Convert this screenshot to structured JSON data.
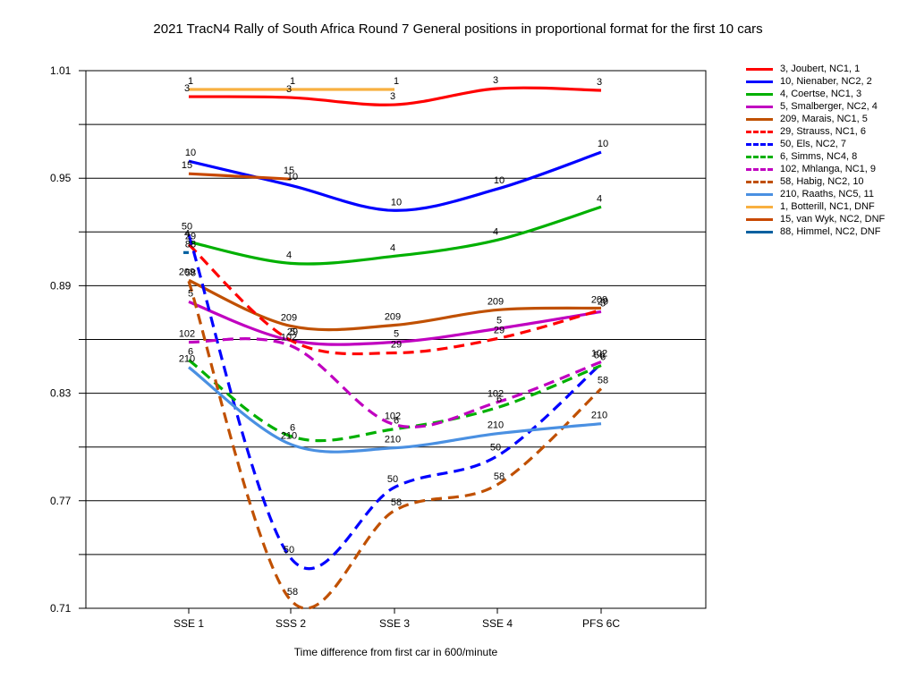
{
  "chart_data": {
    "type": "line",
    "title": "2021 TracN4 Rally of South Africa Round 7  General positions in proportional format for the first 10 cars",
    "xlabel": "Time difference from first car in 600/minute",
    "ylabel": "",
    "categories": [
      "SSE 1",
      "SSS 2",
      "SSE 3",
      "SSE 4",
      "PFS 6C"
    ],
    "yticks": [
      "1.01",
      "0.95",
      "0.89",
      "0.83",
      "0.77",
      "0.71"
    ],
    "ylim": [
      0.71,
      1.01
    ],
    "grid": "horizontal",
    "legend_position": "right",
    "series": [
      {
        "name": "3, Joubert, NC1, 1",
        "label": "3",
        "color": "#ff0000",
        "dash": false,
        "values": [
          0.9955,
          0.995,
          0.991,
          1.0,
          0.999
        ]
      },
      {
        "name": "10, Nienaber, NC2, 2",
        "label": "10",
        "color": "#0000ff",
        "dash": false,
        "values": [
          0.9595,
          0.946,
          0.932,
          0.944,
          0.9645
        ]
      },
      {
        "name": "4, Coertse, NC1, 3",
        "label": "4",
        "color": "#00b000",
        "dash": false,
        "values": [
          0.9145,
          0.9025,
          0.9065,
          0.9155,
          0.934
        ]
      },
      {
        "name": "5, Smalberger, NC2, 4",
        "label": "5",
        "color": "#c000c0",
        "dash": false,
        "values": [
          0.881,
          0.8595,
          0.8585,
          0.866,
          0.8755
        ]
      },
      {
        "name": "209, Marais, NC1, 5",
        "label": "209",
        "color": "#c05000",
        "dash": false,
        "values": [
          0.893,
          0.8675,
          0.868,
          0.8765,
          0.8775
        ]
      },
      {
        "name": "29, Strauss, NC1, 6",
        "label": "29",
        "color": "#ff0000",
        "dash": true,
        "values": [
          0.913,
          0.8595,
          0.8525,
          0.8605,
          0.8765
        ]
      },
      {
        "name": "50, Els, NC2, 7",
        "label": "50",
        "color": "#0000ff",
        "dash": true,
        "values": [
          0.9185,
          0.738,
          0.7775,
          0.795,
          0.8465
        ]
      },
      {
        "name": "6, Simms, NC4, 8",
        "label": "6",
        "color": "#00b000",
        "dash": true,
        "values": [
          0.8485,
          0.806,
          0.81,
          0.822,
          0.8455
        ]
      },
      {
        "name": "102, Mhlanga, NC1, 9",
        "label": "102",
        "color": "#c000c0",
        "dash": true,
        "values": [
          0.8585,
          0.8565,
          0.8125,
          0.825,
          0.8475
        ]
      },
      {
        "name": "58, Habig, NC2, 10",
        "label": "58",
        "color": "#c05000",
        "dash": true,
        "values": [
          0.8925,
          0.7145,
          0.7645,
          0.779,
          0.8325
        ]
      },
      {
        "name": "210, Raaths, NC5, 11",
        "label": "210",
        "color": "#4a90e2",
        "dash": false,
        "values": [
          0.8445,
          0.8015,
          0.7995,
          0.8075,
          0.813
        ]
      },
      {
        "name": "1, Botterill, NC1, DNF",
        "label": "1",
        "color": "#f8b040",
        "dash": false,
        "values": [
          0.9995,
          0.9995,
          0.9995,
          null,
          null
        ]
      },
      {
        "name": "15, van Wyk, NC2, DNF",
        "label": "15",
        "color": "#c84800",
        "dash": false,
        "values": [
          0.9525,
          0.9495,
          null,
          null,
          null
        ]
      },
      {
        "name": "88, Himmel, NC2, DNF",
        "label": "88",
        "color": "#0060a0",
        "dash": false,
        "values": [
          0.9085,
          null,
          null,
          null,
          null
        ]
      }
    ]
  }
}
